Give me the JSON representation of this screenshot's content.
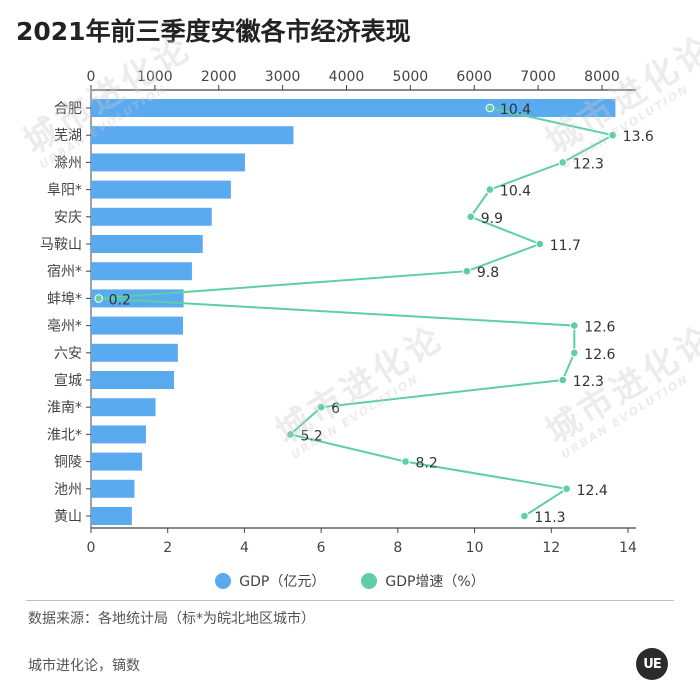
{
  "page": {
    "title": "2021年前三季度安徽各市经济表现",
    "source": "数据来源：各地统计局（标*为皖北地区城市）",
    "footer": "城市进化论，镝数",
    "logo": "UE",
    "watermark_cn": "城市进化论",
    "watermark_en": "URBAN EVOLUTION"
  },
  "legend": {
    "gdp": "GDP（亿元）",
    "growth": "GDP增速（%）"
  },
  "colors": {
    "bar": "#5aaaf0",
    "line": "#5ecfa4",
    "axis": "#444444",
    "tick_text": "#444444",
    "label_text": "#333333"
  },
  "chart_data": {
    "type": "bar",
    "orientation": "horizontal",
    "categories": [
      "合肥",
      "芜湖",
      "滁州",
      "阜阳*",
      "安庆",
      "马鞍山",
      "宿州*",
      "蚌埠*",
      "亳州*",
      "六安",
      "宣城",
      "淮南*",
      "淮北*",
      "铜陵",
      "池州",
      "黄山"
    ],
    "series": [
      {
        "name": "GDP（亿元）",
        "type": "bar",
        "axis": "top",
        "values": [
          8210,
          3170,
          2410,
          2190,
          1890,
          1750,
          1580,
          1450,
          1440,
          1360,
          1300,
          1010,
          860,
          800,
          680,
          640
        ]
      },
      {
        "name": "GDP增速（%）",
        "type": "line",
        "axis": "bottom",
        "values": [
          10.4,
          13.6,
          12.3,
          10.4,
          9.9,
          11.7,
          9.8,
          0.2,
          12.6,
          12.6,
          12.3,
          6,
          5.2,
          8.2,
          12.4,
          11.3
        ],
        "labels": [
          "10.4",
          "13.6",
          "12.3",
          "10.4",
          "9.9",
          "11.7",
          "9.8",
          "0.2",
          "12.6",
          "12.6",
          "12.3",
          "6",
          "5.2",
          "8.2",
          "12.4",
          "11.3"
        ]
      }
    ],
    "top_axis": {
      "range": [
        0,
        8000
      ],
      "ticks": [
        "0",
        "1000",
        "2000",
        "3000",
        "4000",
        "5000",
        "6000",
        "7000",
        "8000"
      ]
    },
    "bottom_axis": {
      "range": [
        0,
        14
      ],
      "ticks": [
        "0",
        "2",
        "4",
        "6",
        "8",
        "10",
        "12",
        "14"
      ]
    },
    "grid": false,
    "legend_position": "bottom"
  }
}
